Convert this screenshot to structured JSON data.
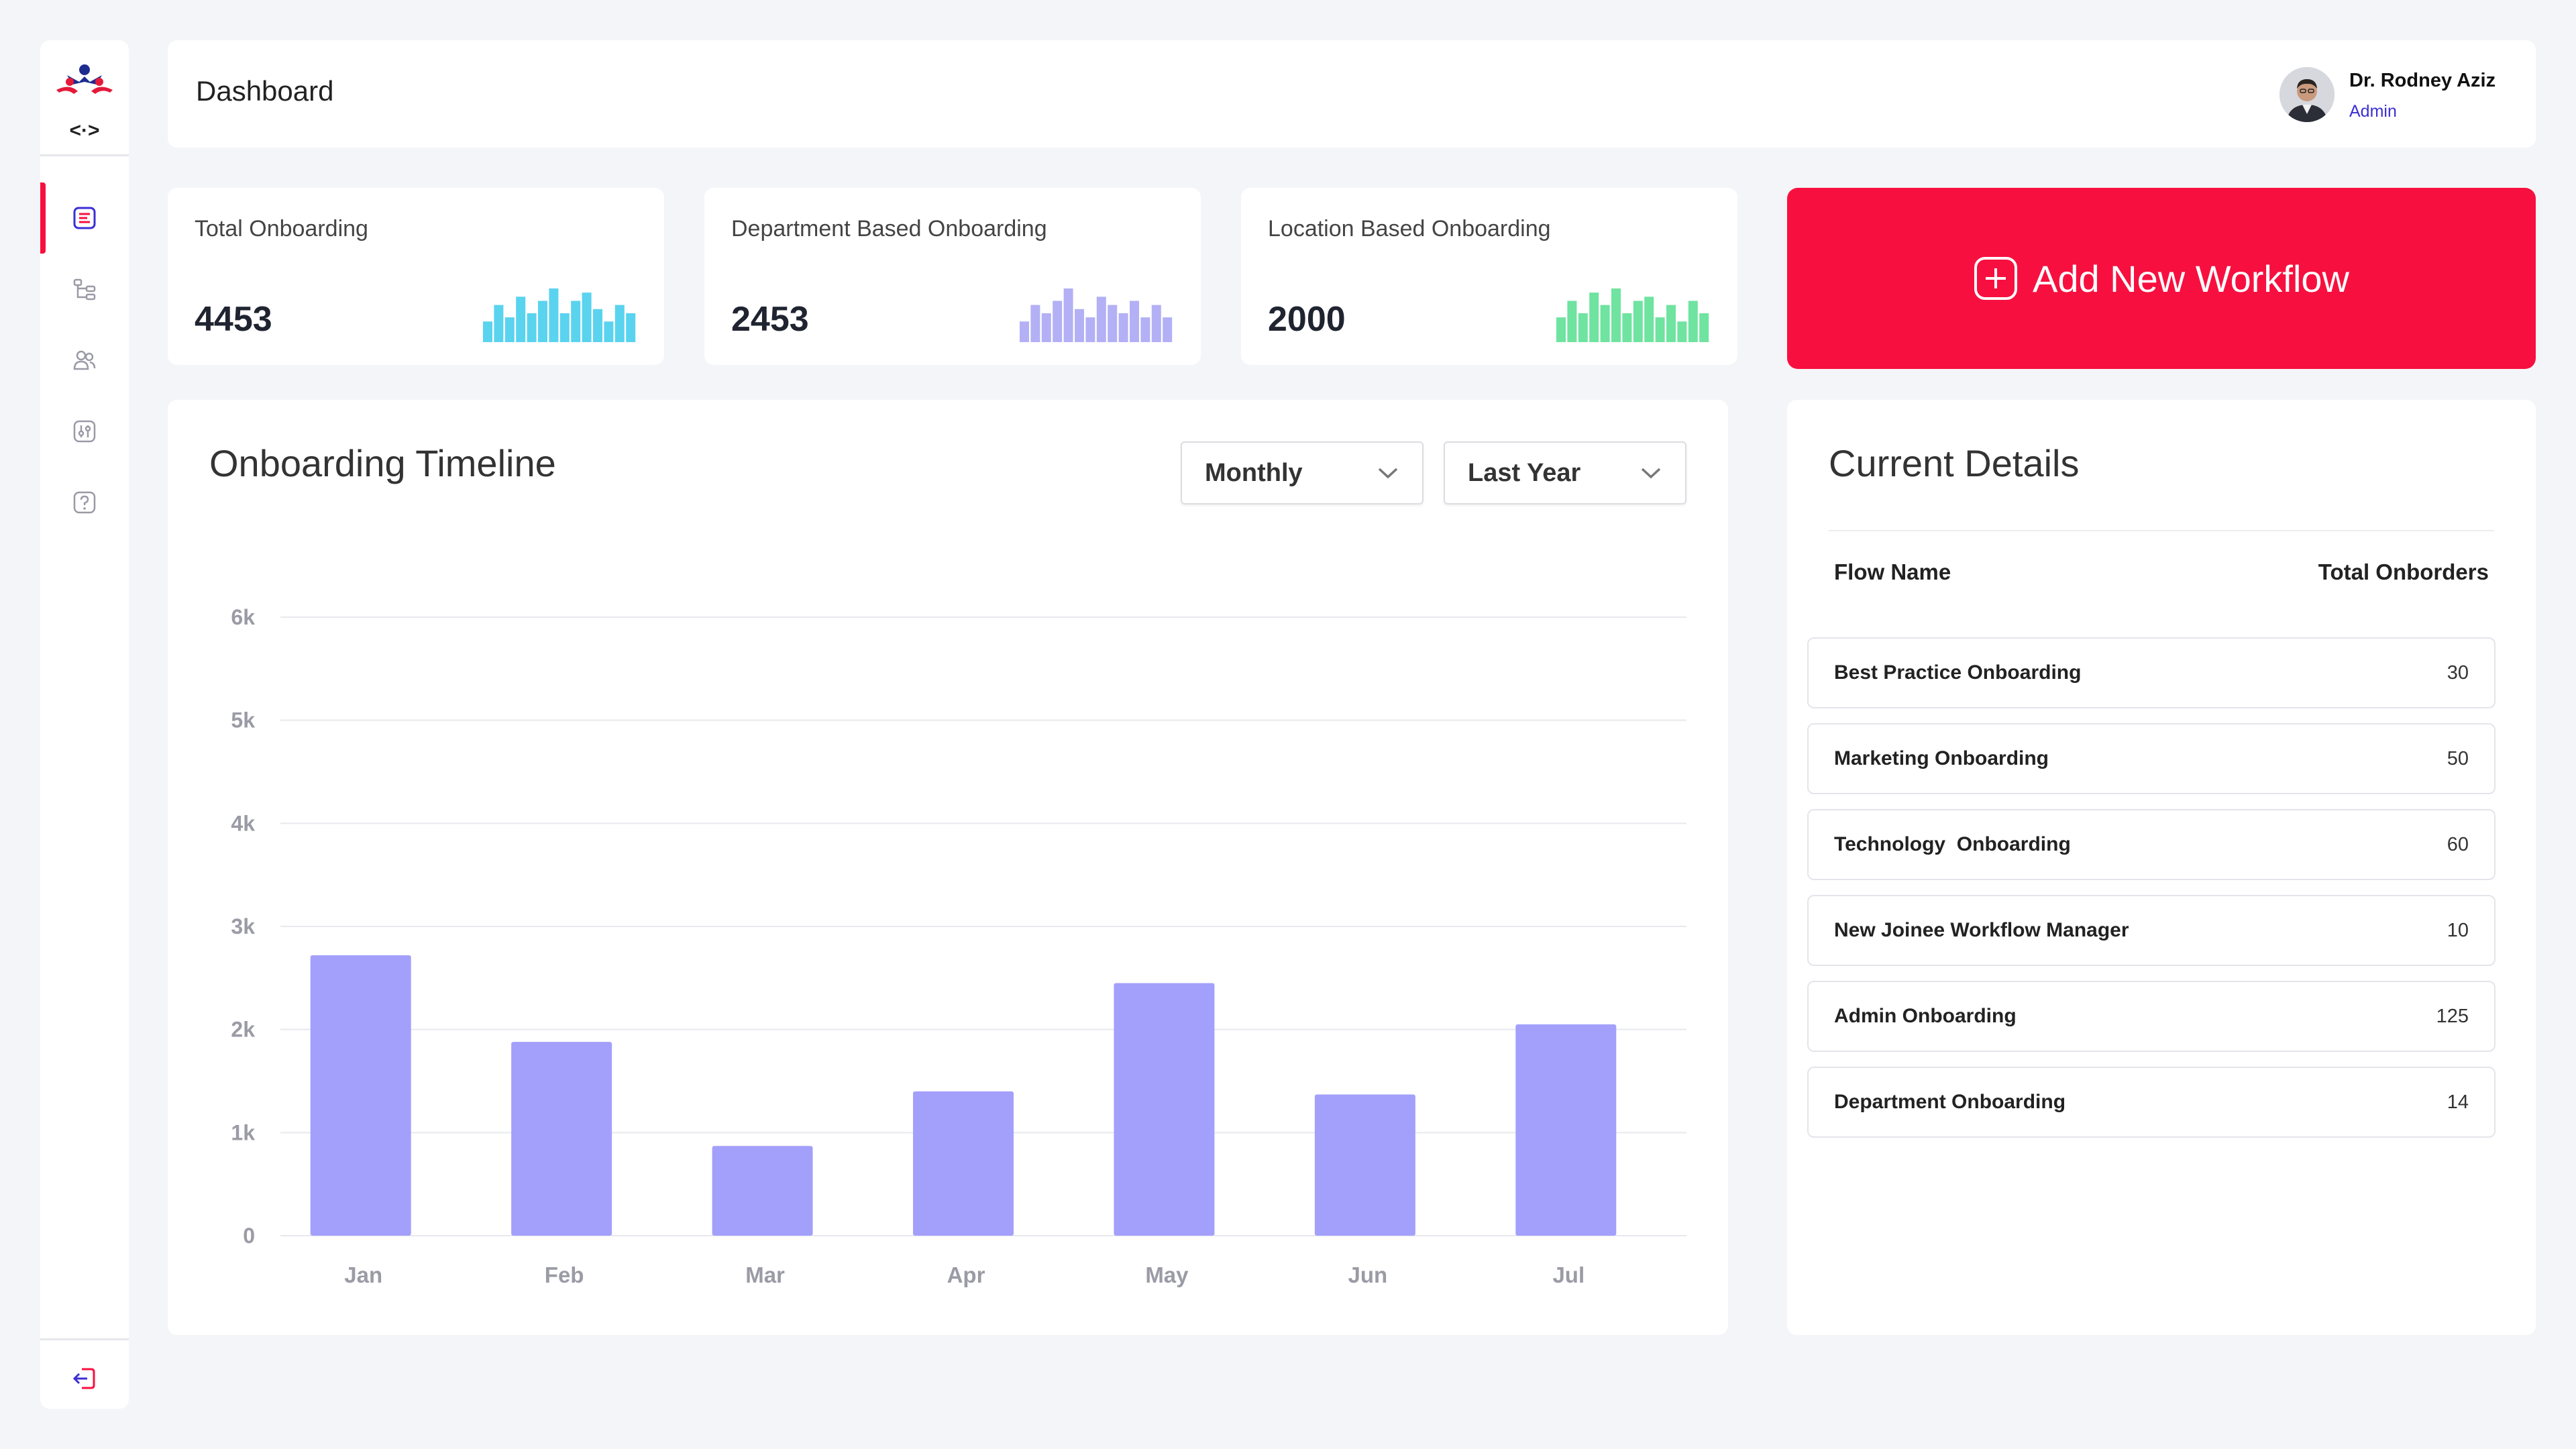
{
  "sidebar": {
    "logo_code": "<·>",
    "items": [
      {
        "icon": "dashboard-icon",
        "active": true
      },
      {
        "icon": "workflow-tree-icon",
        "active": false
      },
      {
        "icon": "users-icon",
        "active": false
      },
      {
        "icon": "settings-sliders-icon",
        "active": false
      },
      {
        "icon": "help-icon",
        "active": false
      }
    ],
    "logout_icon": "logout-icon"
  },
  "header": {
    "title": "Dashboard",
    "user": {
      "name": "Dr. Rodney Aziz",
      "role": "Admin"
    }
  },
  "stats": [
    {
      "label": "Total Onboarding",
      "value": "4453",
      "color": "#5ad3ef",
      "spark": [
        5,
        9,
        6,
        11,
        7,
        10,
        13,
        7,
        10,
        12,
        8,
        5,
        9,
        7
      ]
    },
    {
      "label": "Department Based Onboarding",
      "value": "2453",
      "color": "#b3b0f5",
      "spark": [
        5,
        9,
        7,
        10,
        13,
        8,
        6,
        11,
        9,
        7,
        10,
        6,
        9,
        6
      ]
    },
    {
      "label": "Location Based Onboarding",
      "value": "2000",
      "color": "#6fe3a0",
      "spark": [
        6,
        10,
        7,
        12,
        9,
        13,
        7,
        10,
        11,
        6,
        9,
        5,
        10,
        7
      ]
    }
  ],
  "actions": {
    "add_workflow": "Add New Workflow"
  },
  "timeline": {
    "title": "Onboarding Timeline",
    "period": "Monthly",
    "range": "Last Year"
  },
  "chart_data": {
    "type": "bar",
    "categories": [
      "Jan",
      "Feb",
      "Mar",
      "Apr",
      "May",
      "Jun",
      "Jul"
    ],
    "values": [
      2720,
      1880,
      870,
      1400,
      2450,
      1370,
      2050
    ],
    "ylim": [
      0,
      6000
    ],
    "yticks": [
      0,
      1000,
      2000,
      3000,
      4000,
      5000,
      6000
    ],
    "ytick_labels": [
      "0",
      "1k",
      "2k",
      "3k",
      "4k",
      "5k",
      "6k"
    ],
    "bar_color": "#a3a0fb",
    "grid": true
  },
  "details": {
    "title": "Current Details",
    "col_flow": "Flow Name",
    "col_total": "Total Onborders",
    "rows": [
      {
        "name": "Best Practice Onboarding",
        "total": "30"
      },
      {
        "name": "Marketing Onboarding",
        "total": "50"
      },
      {
        "name": "Technology  Onboarding",
        "total": "60"
      },
      {
        "name": "New Joinee Workflow Manager",
        "total": "10"
      },
      {
        "name": "Admin Onboarding",
        "total": "125"
      },
      {
        "name": "Department Onboarding",
        "total": "14"
      }
    ]
  },
  "colors": {
    "accent": "#f7103f",
    "brand_blue": "#3b2fd4",
    "bar": "#a3a0fb"
  }
}
